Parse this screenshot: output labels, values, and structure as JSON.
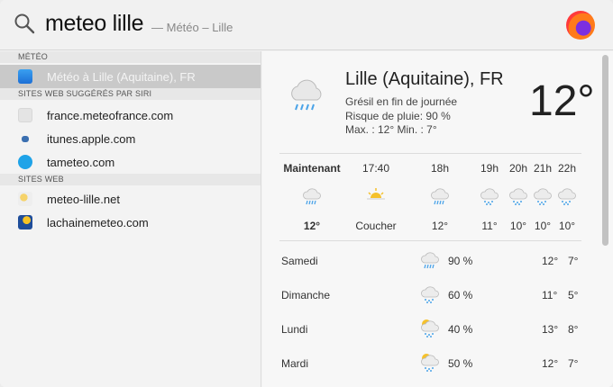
{
  "search": {
    "query": "meteo lille",
    "hint": "— Météo – Lille",
    "icon": "magnifier-icon",
    "browser_icon": "firefox-icon"
  },
  "sidebar": {
    "sections": [
      {
        "header": "MÉTÉO",
        "items": [
          {
            "label": "Météo à Lille (Aquitaine), FR",
            "icon": "weather-app-icon",
            "selected": true
          }
        ]
      },
      {
        "header": "SITES WEB SUGGÉRÉS PAR SIRI",
        "items": [
          {
            "label": "france.meteofrance.com",
            "icon": "compass-icon"
          },
          {
            "label": "itunes.apple.com",
            "icon": "itunes-icon"
          },
          {
            "label": "tameteo.com",
            "icon": "tameteo-icon"
          }
        ]
      },
      {
        "header": "SITES WEB",
        "items": [
          {
            "label": "meteo-lille.net",
            "icon": "sun-cloud-icon"
          },
          {
            "label": "lachainemeteo.com",
            "icon": "lachainemeteo-icon"
          }
        ]
      }
    ]
  },
  "weather": {
    "location": "Lille (Aquitaine), FR",
    "condition": "Grésil en fin de journée",
    "rain": "Risque de pluie: 90 %",
    "minmax": "Max. : 12° Min. : 7°",
    "temp": "12°",
    "hourly": [
      {
        "label": "Maintenant",
        "temp": "12°",
        "icon": "rain-icon"
      },
      {
        "label": "17:40",
        "temp": "Coucher",
        "icon": "sunset-icon"
      },
      {
        "label": "18h",
        "temp": "12°",
        "icon": "rain-icon"
      },
      {
        "label": "19h",
        "temp": "11°",
        "icon": "sleet-icon"
      },
      {
        "label": "20h",
        "temp": "10°",
        "icon": "sleet-icon"
      },
      {
        "label": "21h",
        "temp": "10°",
        "icon": "sleet-icon"
      },
      {
        "label": "22h",
        "temp": "10°",
        "icon": "sleet-icon"
      }
    ],
    "daily": [
      {
        "day": "Samedi",
        "pct": "90 %",
        "max": "12°",
        "min": "7°",
        "icon": "rain-icon"
      },
      {
        "day": "Dimanche",
        "pct": "60 %",
        "max": "11°",
        "min": "5°",
        "icon": "sleet-icon"
      },
      {
        "day": "Lundi",
        "pct": "40 %",
        "max": "13°",
        "min": "8°",
        "icon": "sun-rain-icon"
      },
      {
        "day": "Mardi",
        "pct": "50 %",
        "max": "12°",
        "min": "7°",
        "icon": "sun-rain-icon"
      }
    ]
  },
  "colors": {
    "selected_row": "#c9c9c9",
    "rain": "#4aa3e8"
  }
}
